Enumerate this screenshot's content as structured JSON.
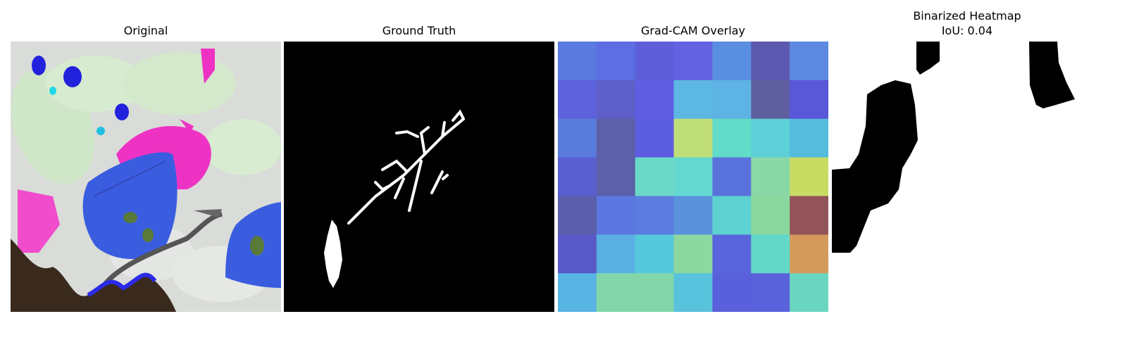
{
  "panels": [
    {
      "title": "Original"
    },
    {
      "title": "Ground Truth"
    },
    {
      "title": "Grad-CAM Overlay"
    },
    {
      "title": "Binarized Heatmap",
      "subtitle": "IoU: 0.04"
    }
  ],
  "gradcam": {
    "rows": 7,
    "cols": 7,
    "colors": [
      [
        "#5b7ae0",
        "#5c6ee2",
        "#5e5fd8",
        "#6262e2",
        "#5a8ee0",
        "#5c5ab0",
        "#5b8ae0"
      ],
      [
        "#5e62dc",
        "#5e5fc8",
        "#5f5ee2",
        "#5cb8e2",
        "#5cb3e4",
        "#5f5fa0",
        "#5858d8"
      ],
      [
        "#5a7cdc",
        "#5c60a8",
        "#5d5de2",
        "#c0de78",
        "#62dcc8",
        "#5cd0d6",
        "#56bcdc"
      ],
      [
        "#5a5ed0",
        "#5c60a8",
        "#6cd8c8",
        "#62d8d0",
        "#5a72dc",
        "#8ad8a6",
        "#c8dc64"
      ],
      [
        "#5b5eaa",
        "#5c78e0",
        "#5c7ce0",
        "#5a92dc",
        "#5ed2d0",
        "#8ad8a0",
        "#925459"
      ],
      [
        "#5858c8",
        "#5ab0e2",
        "#56c8dc",
        "#8cd8a0",
        "#5a64dc",
        "#62d8c8",
        "#d49a5c"
      ],
      [
        "#58b4e2",
        "#82d6aa",
        "#82d6aa",
        "#58c2dc",
        "#5a60dc",
        "#5a62dc",
        "#6ad6c0"
      ]
    ]
  }
}
